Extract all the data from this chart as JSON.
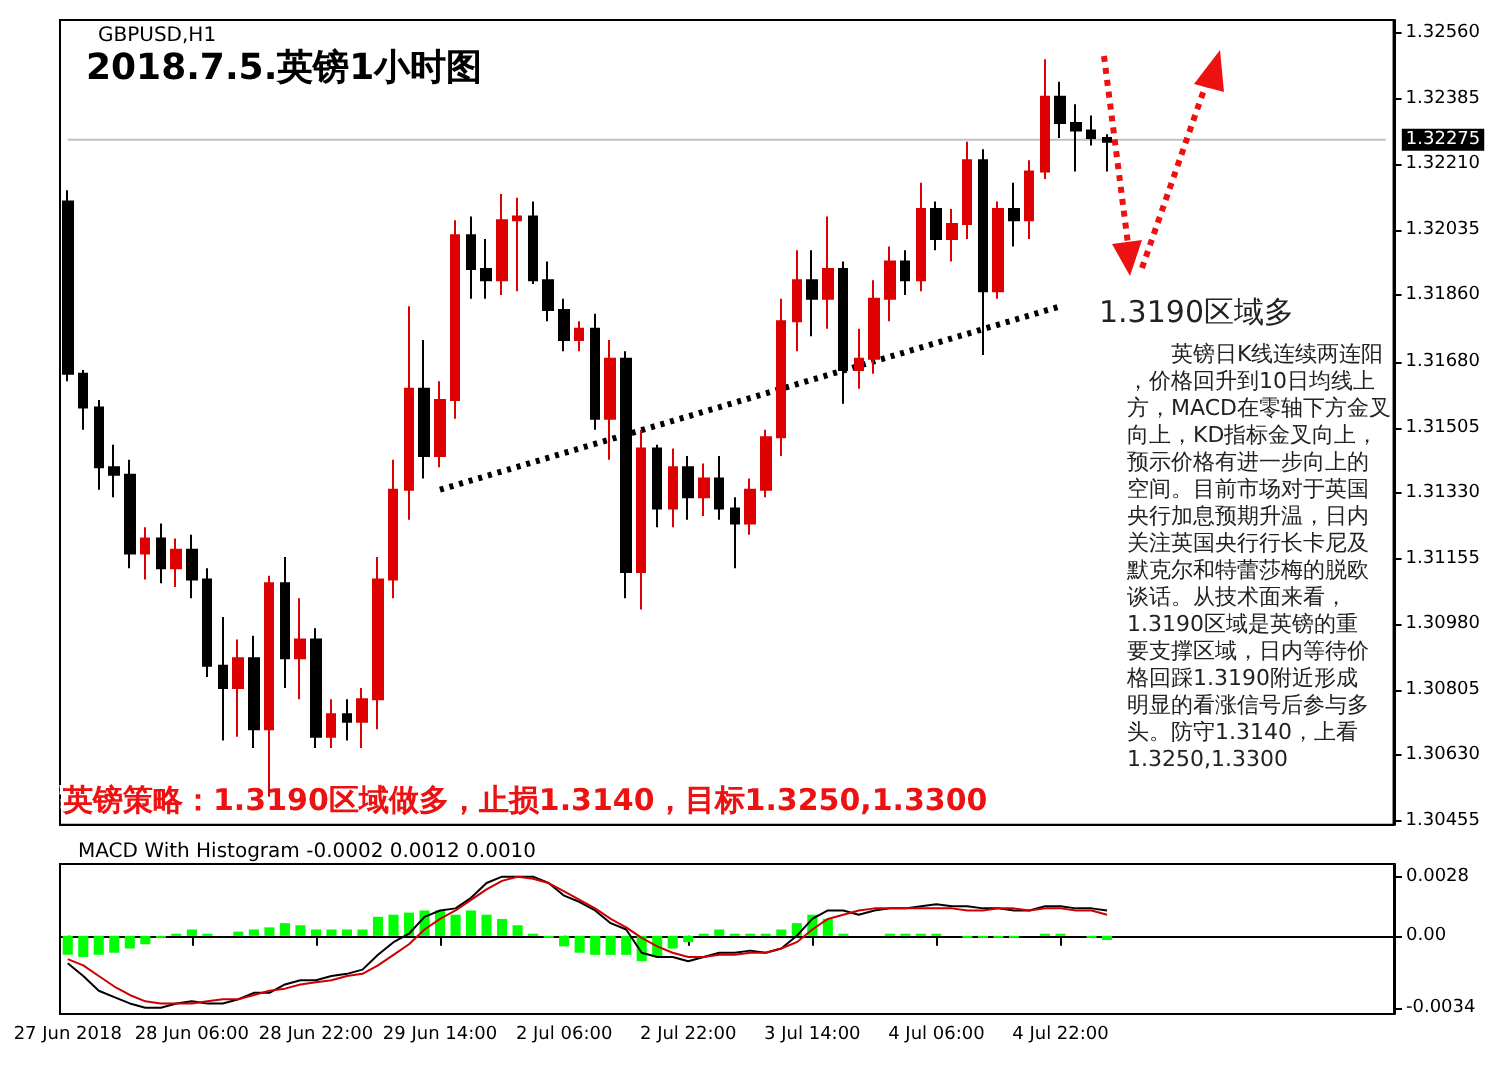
{
  "chart_data": [
    {
      "type": "candlestick",
      "subtitle": "GBPUSD,H1",
      "title": "2018.7.5.英镑1小时图",
      "categories": [
        "27 Jun 2018",
        null,
        null,
        null,
        null,
        null,
        null,
        null,
        "28 Jun 06:00",
        null,
        null,
        null,
        null,
        null,
        null,
        null,
        "28 Jun 22:00",
        null,
        null,
        null,
        null,
        null,
        null,
        null,
        "29 Jun 14:00",
        null,
        null,
        null,
        null,
        null,
        null,
        null,
        "2 Jul 06:00",
        null,
        null,
        null,
        null,
        null,
        null,
        null,
        "2 Jul 22:00",
        null,
        null,
        null,
        null,
        null,
        null,
        null,
        "3 Jul 14:00",
        null,
        null,
        null,
        null,
        null,
        null,
        null,
        "4 Jul 06:00",
        null,
        null,
        null,
        null,
        null,
        null,
        null,
        "4 Jul 22:00",
        null,
        null,
        null,
        null,
        null,
        null,
        null,
        null,
        null,
        null,
        null,
        null,
        null,
        null,
        null,
        null,
        null,
        null,
        null,
        null,
        null
      ],
      "ohlc": [
        [
          1.3211,
          1.3214,
          1.3163,
          1.3165
        ],
        [
          1.3165,
          1.3166,
          1.315,
          1.3156
        ],
        [
          1.3156,
          1.3158,
          1.3134,
          1.314
        ],
        [
          1.314,
          1.3146,
          1.3132,
          1.3138
        ],
        [
          1.3138,
          1.3142,
          1.3113,
          1.3117
        ],
        [
          1.3117,
          1.3124,
          1.311,
          1.3121
        ],
        [
          1.3121,
          1.3125,
          1.3109,
          1.3113
        ],
        [
          1.3113,
          1.3121,
          1.3108,
          1.3118
        ],
        [
          1.3118,
          1.3122,
          1.3105,
          1.311
        ],
        [
          1.311,
          1.3113,
          1.3084,
          1.3087
        ],
        [
          1.3087,
          1.31,
          1.3067,
          1.3081
        ],
        [
          1.3081,
          1.3094,
          1.3068,
          1.3089
        ],
        [
          1.3089,
          1.3095,
          1.3065,
          1.307
        ],
        [
          1.307,
          1.3111,
          1.3052,
          1.3109
        ],
        [
          1.3109,
          1.3116,
          1.3081,
          1.3089
        ],
        [
          1.3089,
          1.3105,
          1.3078,
          1.3094
        ],
        [
          1.3094,
          1.3097,
          1.3065,
          1.3068
        ],
        [
          1.3068,
          1.3078,
          1.3065,
          1.3074
        ],
        [
          1.3074,
          1.3078,
          1.3067,
          1.3072
        ],
        [
          1.3072,
          1.3081,
          1.3065,
          1.3078
        ],
        [
          1.3078,
          1.3116,
          1.307,
          1.311
        ],
        [
          1.311,
          1.3142,
          1.3105,
          1.3134
        ],
        [
          1.3134,
          1.3183,
          1.3126,
          1.3161
        ],
        [
          1.3161,
          1.3174,
          1.3137,
          1.3143
        ],
        [
          1.3143,
          1.3163,
          1.314,
          1.3158
        ],
        [
          1.3158,
          1.3206,
          1.3153,
          1.3202
        ],
        [
          1.3202,
          1.3207,
          1.3185,
          1.3193
        ],
        [
          1.3193,
          1.3201,
          1.3185,
          1.319
        ],
        [
          1.319,
          1.3213,
          1.3186,
          1.3206
        ],
        [
          1.3206,
          1.3212,
          1.3187,
          1.3207
        ],
        [
          1.3207,
          1.3211,
          1.3189,
          1.319
        ],
        [
          1.319,
          1.3195,
          1.3179,
          1.3182
        ],
        [
          1.3182,
          1.3185,
          1.3171,
          1.3174
        ],
        [
          1.3174,
          1.3179,
          1.3171,
          1.3177
        ],
        [
          1.3177,
          1.3181,
          1.315,
          1.3153
        ],
        [
          1.3153,
          1.3174,
          1.3142,
          1.3169
        ],
        [
          1.3169,
          1.3171,
          1.3105,
          1.3112
        ],
        [
          1.3112,
          1.315,
          1.3102,
          1.3145
        ],
        [
          1.3145,
          1.3146,
          1.3124,
          1.3129
        ],
        [
          1.3129,
          1.3145,
          1.3124,
          1.314
        ],
        [
          1.314,
          1.3143,
          1.3126,
          1.3132
        ],
        [
          1.3132,
          1.3141,
          1.3127,
          1.3137
        ],
        [
          1.3137,
          1.3143,
          1.3126,
          1.3129
        ],
        [
          1.3129,
          1.3132,
          1.3113,
          1.3125
        ],
        [
          1.3125,
          1.3137,
          1.3122,
          1.3134
        ],
        [
          1.3134,
          1.315,
          1.3132,
          1.3148
        ],
        [
          1.3148,
          1.3185,
          1.3143,
          1.3179
        ],
        [
          1.3179,
          1.3198,
          1.3171,
          1.319
        ],
        [
          1.319,
          1.3198,
          1.3175,
          1.3185
        ],
        [
          1.3185,
          1.3207,
          1.3177,
          1.3193
        ],
        [
          1.3193,
          1.3195,
          1.3157,
          1.3166
        ],
        [
          1.3166,
          1.3177,
          1.3161,
          1.3169
        ],
        [
          1.3169,
          1.319,
          1.3165,
          1.3185
        ],
        [
          1.3185,
          1.3199,
          1.3179,
          1.3195
        ],
        [
          1.3195,
          1.3198,
          1.3186,
          1.319
        ],
        [
          1.319,
          1.3216,
          1.3187,
          1.3209
        ],
        [
          1.3209,
          1.3211,
          1.3198,
          1.3201
        ],
        [
          1.3201,
          1.3209,
          1.3195,
          1.3205
        ],
        [
          1.3205,
          1.3227,
          1.3201,
          1.3222
        ],
        [
          1.3222,
          1.3225,
          1.317,
          1.3187
        ],
        [
          1.3187,
          1.3211,
          1.3185,
          1.3209
        ],
        [
          1.3209,
          1.3216,
          1.3199,
          1.3206
        ],
        [
          1.3206,
          1.3222,
          1.3201,
          1.3219
        ],
        [
          1.3219,
          1.3249,
          1.3217,
          1.3239
        ],
        [
          1.3239,
          1.3243,
          1.3228,
          1.3232
        ],
        [
          1.3232,
          1.3237,
          1.3219,
          1.323
        ],
        [
          1.323,
          1.3234,
          1.3226,
          1.3228
        ],
        [
          1.3228,
          1.3229,
          1.3219,
          1.3227
        ],
        null,
        null,
        null,
        null,
        null,
        null,
        null,
        null,
        null,
        null,
        null,
        null,
        null,
        null,
        null,
        null,
        null,
        null
      ],
      "series": [
        {
          "type": "line",
          "color": "#000000",
          "line_style": "dotted",
          "x": [
            "29 Jun 14:00",
            "4 Jul 22:00"
          ],
          "values": [
            1.3134,
            1.3183
          ]
        }
      ],
      "marker": "none",
      "ylim": [
        1.30445,
        1.32595
      ],
      "yticks": [
        {
          "value": 1.3256,
          "label": "1.32560"
        },
        1.32385,
        {
          "value": 1.3221,
          "label": "1.32210"
        },
        1.32035,
        {
          "value": 1.3186,
          "label": "1.31860"
        },
        {
          "value": 1.3168,
          "label": "1.31680"
        },
        1.31505,
        {
          "value": 1.3133,
          "label": "1.31330"
        },
        1.31155,
        {
          "value": 1.3098,
          "label": "1.30980"
        },
        1.30805,
        {
          "value": 1.3063,
          "label": "1.30630"
        },
        1.30455
      ],
      "tick_labels": "y",
      "ref_lines": [
        {
          "axis": "y",
          "value": 1.32275,
          "label": "1.32275",
          "color": "#c0c0c0"
        }
      ],
      "annotations": [
        "　　英镑日K线连续两连阳，价格回升到10日均线上方，MACD在零轴下方金叉向上，KD指标金叉向上，预示价格有进一步向上的空间。目前市场对于英国央行加息预期升温，日内关注英国央行行长卡尼及默克尔和特蕾莎梅的脱欧谈话。从技术面来看，1.3190区域是英镑的重要支撑区域，日内等待价格回踩1.3190附近形成明显的看涨信号后参与多头。防守1.3140，上看1.3250,1.3300",
        "英镑策略：1.3190区域做多，止损1.3140，目标1.3250,1.3300",
        "1.3190区域多"
      ]
    },
    {
      "type": "bar",
      "title": "MACD With Histogram -0.0002 0.0012 0.0010",
      "categories": [
        "27 Jun 2018",
        null,
        null,
        null,
        null,
        null,
        null,
        null,
        "28 Jun 06:00",
        null,
        null,
        null,
        null,
        null,
        null,
        null,
        "28 Jun 22:00",
        null,
        null,
        null,
        null,
        null,
        null,
        null,
        "29 Jun 14:00",
        null,
        null,
        null,
        null,
        null,
        null,
        null,
        "2 Jul 06:00",
        null,
        null,
        null,
        null,
        null,
        null,
        null,
        "2 Jul 22:00",
        null,
        null,
        null,
        null,
        null,
        null,
        null,
        "3 Jul 14:00",
        null,
        null,
        null,
        null,
        null,
        null,
        null,
        "4 Jul 06:00",
        null,
        null,
        null,
        null,
        null,
        null,
        null,
        "4 Jul 22:00",
        null,
        null,
        null,
        null,
        null,
        null,
        null,
        null,
        null,
        null,
        null,
        null,
        null,
        null,
        null,
        null,
        null,
        null,
        null,
        null,
        null
      ],
      "series": [
        {
          "type": "bar",
          "color": "#00ff00",
          "values": [
            -0.0009,
            -0.001,
            -0.0009,
            -0.0008,
            -0.0006,
            -0.0004,
            -0.0001,
            0.0001,
            0.0003,
            0.0001,
            0,
            0.0002,
            0.0003,
            0.0004,
            0.0006,
            0.0005,
            0.0003,
            0.0003,
            0.0003,
            0.0003,
            0.0009,
            0.001,
            0.0011,
            0.0012,
            0.0012,
            0.001,
            0.0012,
            0.001,
            0.0008,
            0.0005,
            0.0001,
            -0.0001,
            -0.0005,
            -0.0008,
            -0.0009,
            -0.0009,
            -0.0009,
            -0.0012,
            -0.001,
            -0.0006,
            -0.0003,
            0.0001,
            0.0003,
            0.0001,
            0.0001,
            0.0001,
            0.0003,
            0.0006,
            0.001,
            0.0008,
            0.0001,
            0,
            0,
            0.0001,
            0.0001,
            0.0001,
            0.0001,
            0,
            -0.0001,
            -0.0001,
            -0.0001,
            -0.0001,
            0,
            0.0001,
            0.0001,
            0,
            -0.0001,
            -0.0002,
            null,
            null,
            null,
            null,
            null,
            null,
            null,
            null,
            null,
            null,
            null,
            null,
            null,
            null,
            null,
            null,
            null,
            null
          ]
        },
        {
          "type": "line",
          "color": "#000000",
          "values": [
            -0.0013,
            -0.0019,
            -0.0026,
            -0.0029,
            -0.0032,
            -0.0034,
            -0.0034,
            -0.0032,
            -0.0031,
            -0.0032,
            -0.0032,
            -0.003,
            -0.0027,
            -0.0027,
            -0.0023,
            -0.0021,
            -0.0021,
            -0.0019,
            -0.0018,
            -0.0016,
            -0.0009,
            -0.0003,
            0.0001,
            0.0009,
            0.0012,
            0.0013,
            0.0018,
            0.0025,
            0.0028,
            0.0028,
            0.0028,
            0.0025,
            0.0019,
            0.0016,
            0.0012,
            0.0006,
            0.0003,
            -0.0008,
            -0.001,
            -0.001,
            -0.0012,
            -0.001,
            -0.0008,
            -0.0008,
            -0.0007,
            -0.0008,
            -0.0006,
            0,
            0.0008,
            0.0012,
            0.0012,
            0.001,
            0.0012,
            0.0013,
            0.0013,
            0.0014,
            0.0015,
            0.0014,
            0.0014,
            0.0013,
            0.0013,
            0.0012,
            0.0012,
            0.0014,
            0.0014,
            0.0013,
            0.0013,
            0.0012,
            null,
            null,
            null,
            null,
            null,
            null,
            null,
            null,
            null,
            null,
            null,
            null,
            null,
            null,
            null,
            null,
            null,
            null
          ]
        },
        {
          "type": "line",
          "color": "#cc0000",
          "values": [
            -0.0011,
            -0.0014,
            -0.0019,
            -0.0024,
            -0.0028,
            -0.0031,
            -0.0032,
            -0.0032,
            -0.0032,
            -0.0031,
            -0.003,
            -0.003,
            -0.0028,
            -0.0026,
            -0.0025,
            -0.0023,
            -0.0022,
            -0.0021,
            -0.0019,
            -0.0018,
            -0.0014,
            -0.0009,
            -0.0004,
            0.0003,
            0.0008,
            0.0012,
            0.0017,
            0.0022,
            0.0026,
            0.0028,
            0.0027,
            0.0025,
            0.0021,
            0.0017,
            0.0013,
            0.0008,
            0.0004,
            -0.0001,
            -0.0005,
            -0.0008,
            -0.001,
            -0.001,
            -0.0009,
            -0.0009,
            -0.0008,
            -0.0008,
            -0.0006,
            -0.0003,
            0.0003,
            0.0008,
            0.001,
            0.0012,
            0.0013,
            0.0013,
            0.0013,
            0.0013,
            0.0013,
            0.0013,
            0.0012,
            0.0012,
            0.0013,
            0.0013,
            0.0012,
            0.0013,
            0.0013,
            0.0012,
            0.0012,
            0.001,
            null,
            null,
            null,
            null,
            null,
            null,
            null,
            null,
            null,
            null,
            null,
            null,
            null,
            null,
            null,
            null,
            null,
            null
          ]
        }
      ],
      "marker": "none",
      "ylim": [
        -0.0037,
        0.0034
      ],
      "yticks": [
        0.0028,
        {
          "value": 0,
          "label": "0.00"
        },
        -0.0034
      ]
    }
  ]
}
